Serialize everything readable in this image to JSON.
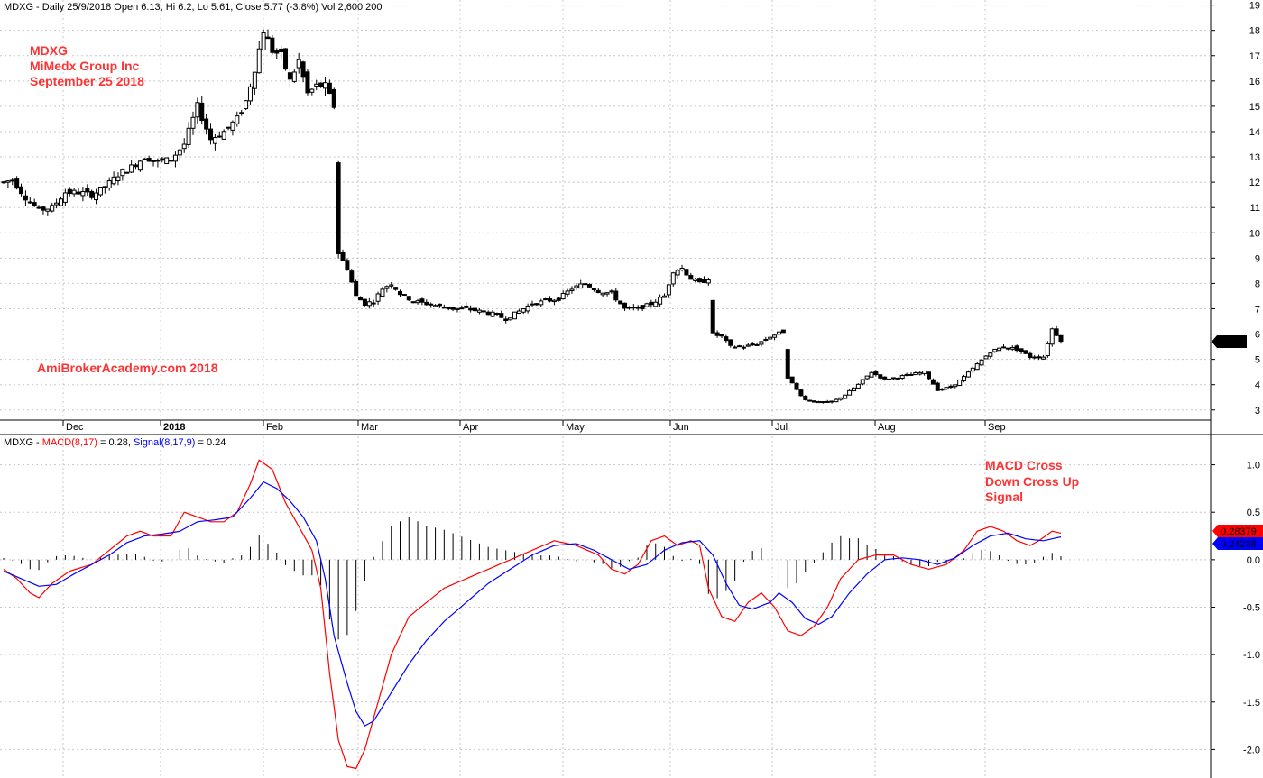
{
  "price_header": "MDXG - Daily 25/9/2018 Open 6.13, Hi 6.2, Lo 5.61, Close 5.77 (-3.8%) Vol 2,600,200",
  "macd_header": {
    "prefix": "MDXG - ",
    "macd_text": "MACD(8,17)",
    "macd_value": " = 0.28, ",
    "signal_text": "Signal(8,17,9)",
    "signal_value": " = 0.24"
  },
  "annotations": {
    "ticker": "MDXG",
    "company": "MiMedx Group Inc",
    "date": "September 25 2018",
    "watermark": "AmiBrokerAcademy.com  2018",
    "macd_note_1": "MACD Cross",
    "macd_note_2": "Down Cross Up",
    "macd_note_3": "Signal"
  },
  "colors": {
    "macd": "#ff0000",
    "signal": "#0000ff",
    "note": "#ff3333",
    "price_tag": "#000000",
    "macd_tag": "#ff0000",
    "signal_tag": "#0000ff"
  },
  "tags": {
    "price_last": "5.77",
    "macd_last": "0.28379",
    "signal_last": "0.24238"
  },
  "chart_data": [
    {
      "type": "candlestick",
      "title": "MDXG - Daily 25/9/2018",
      "ylim": [
        2.6,
        19.2
      ],
      "y_ticks": [
        3,
        4,
        5,
        6,
        7,
        8,
        9,
        10,
        11,
        12,
        13,
        14,
        15,
        16,
        17,
        18,
        19
      ],
      "x_months": [
        "Dec",
        "2018",
        "Feb",
        "Mar",
        "Apr",
        "May",
        "Jun",
        "Jul",
        "Aug",
        "Sep"
      ],
      "grid": true,
      "anchors": [
        {
          "d": 0,
          "p": 12.0
        },
        {
          "d": 2,
          "p": 12.1
        },
        {
          "d": 5,
          "p": 11.4
        },
        {
          "d": 8,
          "p": 10.9
        },
        {
          "d": 11,
          "p": 11.0
        },
        {
          "d": 14,
          "p": 11.6
        },
        {
          "d": 17,
          "p": 11.6
        },
        {
          "d": 20,
          "p": 11.5
        },
        {
          "d": 23,
          "p": 11.8
        },
        {
          "d": 26,
          "p": 12.3
        },
        {
          "d": 29,
          "p": 12.6
        },
        {
          "d": 32,
          "p": 13.0
        },
        {
          "d": 35,
          "p": 12.8
        },
        {
          "d": 38,
          "p": 12.9
        },
        {
          "d": 41,
          "p": 13.5
        },
        {
          "d": 44,
          "p": 15.0
        },
        {
          "d": 47,
          "p": 13.7
        },
        {
          "d": 50,
          "p": 14.0
        },
        {
          "d": 53,
          "p": 14.5
        },
        {
          "d": 55,
          "p": 15.2
        },
        {
          "d": 57,
          "p": 16.5
        },
        {
          "d": 59,
          "p": 18.0
        },
        {
          "d": 61,
          "p": 17.2
        },
        {
          "d": 63,
          "p": 17.0
        },
        {
          "d": 65,
          "p": 16.0
        },
        {
          "d": 67,
          "p": 16.8
        },
        {
          "d": 69,
          "p": 15.5
        },
        {
          "d": 71,
          "p": 15.8
        },
        {
          "d": 73,
          "p": 15.8
        },
        {
          "d": 75,
          "p": 15.0
        },
        {
          "d": 76,
          "p": 9.2
        },
        {
          "d": 78,
          "p": 8.6
        },
        {
          "d": 80,
          "p": 7.5
        },
        {
          "d": 82,
          "p": 7.2
        },
        {
          "d": 84,
          "p": 7.3
        },
        {
          "d": 86,
          "p": 7.8
        },
        {
          "d": 88,
          "p": 8.0
        },
        {
          "d": 90,
          "p": 7.6
        },
        {
          "d": 93,
          "p": 7.3
        },
        {
          "d": 96,
          "p": 7.2
        },
        {
          "d": 99,
          "p": 7.1
        },
        {
          "d": 102,
          "p": 7.0
        },
        {
          "d": 105,
          "p": 7.0
        },
        {
          "d": 108,
          "p": 6.9
        },
        {
          "d": 111,
          "p": 6.8
        },
        {
          "d": 114,
          "p": 6.6
        },
        {
          "d": 117,
          "p": 6.9
        },
        {
          "d": 120,
          "p": 7.2
        },
        {
          "d": 123,
          "p": 7.3
        },
        {
          "d": 126,
          "p": 7.4
        },
        {
          "d": 129,
          "p": 7.8
        },
        {
          "d": 132,
          "p": 8.0
        },
        {
          "d": 135,
          "p": 7.7
        },
        {
          "d": 138,
          "p": 7.6
        },
        {
          "d": 141,
          "p": 7.0
        },
        {
          "d": 144,
          "p": 7.0
        },
        {
          "d": 147,
          "p": 7.2
        },
        {
          "d": 150,
          "p": 7.5
        },
        {
          "d": 152,
          "p": 8.5
        },
        {
          "d": 154,
          "p": 8.6
        },
        {
          "d": 156,
          "p": 8.2
        },
        {
          "d": 158,
          "p": 8.0
        },
        {
          "d": 160,
          "p": 8.2
        },
        {
          "d": 161,
          "p": 6.0
        },
        {
          "d": 163,
          "p": 5.9
        },
        {
          "d": 165,
          "p": 5.5
        },
        {
          "d": 168,
          "p": 5.5
        },
        {
          "d": 171,
          "p": 5.6
        },
        {
          "d": 174,
          "p": 5.9
        },
        {
          "d": 177,
          "p": 6.1
        },
        {
          "d": 178,
          "p": 4.3
        },
        {
          "d": 180,
          "p": 3.8
        },
        {
          "d": 182,
          "p": 3.4
        },
        {
          "d": 185,
          "p": 3.3
        },
        {
          "d": 188,
          "p": 3.3
        },
        {
          "d": 191,
          "p": 3.6
        },
        {
          "d": 194,
          "p": 4.0
        },
        {
          "d": 197,
          "p": 4.5
        },
        {
          "d": 200,
          "p": 4.2
        },
        {
          "d": 203,
          "p": 4.3
        },
        {
          "d": 206,
          "p": 4.4
        },
        {
          "d": 209,
          "p": 4.5
        },
        {
          "d": 212,
          "p": 3.8
        },
        {
          "d": 215,
          "p": 3.9
        },
        {
          "d": 218,
          "p": 4.3
        },
        {
          "d": 221,
          "p": 4.8
        },
        {
          "d": 224,
          "p": 5.3
        },
        {
          "d": 227,
          "p": 5.5
        },
        {
          "d": 230,
          "p": 5.4
        },
        {
          "d": 233,
          "p": 5.1
        },
        {
          "d": 236,
          "p": 5.1
        },
        {
          "d": 238,
          "p": 6.2
        },
        {
          "d": 240,
          "p": 5.77
        }
      ]
    },
    {
      "type": "line",
      "title": "MACD(8,17) = 0.28, Signal(8,17,9) = 0.24",
      "ylim": [
        -2.3,
        1.3
      ],
      "y_ticks": [
        -2.0,
        -1.5,
        -1.0,
        -0.5,
        0.0,
        0.5,
        1.0
      ],
      "grid": true,
      "series": [
        {
          "name": "MACD(8,17)",
          "color": "#ff0000",
          "points": [
            [
              0,
              -0.1
            ],
            [
              3,
              -0.2
            ],
            [
              6,
              -0.35
            ],
            [
              8,
              -0.4
            ],
            [
              11,
              -0.25
            ],
            [
              15,
              -0.12
            ],
            [
              20,
              -0.05
            ],
            [
              24,
              0.1
            ],
            [
              28,
              0.25
            ],
            [
              31,
              0.3
            ],
            [
              34,
              0.25
            ],
            [
              38,
              0.25
            ],
            [
              41,
              0.5
            ],
            [
              44,
              0.45
            ],
            [
              47,
              0.4
            ],
            [
              50,
              0.4
            ],
            [
              53,
              0.5
            ],
            [
              56,
              0.8
            ],
            [
              58,
              1.05
            ],
            [
              61,
              0.95
            ],
            [
              64,
              0.6
            ],
            [
              67,
              0.35
            ],
            [
              70,
              0.1
            ],
            [
              72,
              -0.3
            ],
            [
              74,
              -1.2
            ],
            [
              76,
              -1.9
            ],
            [
              78,
              -2.18
            ],
            [
              80,
              -2.2
            ],
            [
              82,
              -2.0
            ],
            [
              85,
              -1.5
            ],
            [
              88,
              -1.0
            ],
            [
              92,
              -0.6
            ],
            [
              96,
              -0.45
            ],
            [
              100,
              -0.3
            ],
            [
              105,
              -0.2
            ],
            [
              110,
              -0.1
            ],
            [
              115,
              0.0
            ],
            [
              120,
              0.1
            ],
            [
              125,
              0.2
            ],
            [
              130,
              0.15
            ],
            [
              135,
              0.05
            ],
            [
              138,
              -0.1
            ],
            [
              141,
              -0.15
            ],
            [
              144,
              -0.05
            ],
            [
              147,
              0.2
            ],
            [
              150,
              0.25
            ],
            [
              153,
              0.15
            ],
            [
              156,
              0.2
            ],
            [
              158,
              0.15
            ],
            [
              160,
              -0.3
            ],
            [
              163,
              -0.6
            ],
            [
              166,
              -0.65
            ],
            [
              169,
              -0.45
            ],
            [
              172,
              -0.35
            ],
            [
              175,
              -0.5
            ],
            [
              178,
              -0.75
            ],
            [
              181,
              -0.8
            ],
            [
              184,
              -0.7
            ],
            [
              187,
              -0.5
            ],
            [
              190,
              -0.2
            ],
            [
              194,
              0.0
            ],
            [
              198,
              0.05
            ],
            [
              202,
              0.05
            ],
            [
              206,
              -0.05
            ],
            [
              210,
              -0.1
            ],
            [
              214,
              -0.05
            ],
            [
              218,
              0.1
            ],
            [
              221,
              0.3
            ],
            [
              224,
              0.35
            ],
            [
              227,
              0.3
            ],
            [
              230,
              0.2
            ],
            [
              233,
              0.15
            ],
            [
              235,
              0.2
            ],
            [
              238,
              0.3
            ],
            [
              240,
              0.28
            ]
          ]
        },
        {
          "name": "Signal(8,17,9)",
          "color": "#0000ff",
          "points": [
            [
              0,
              -0.12
            ],
            [
              4,
              -0.2
            ],
            [
              8,
              -0.28
            ],
            [
              12,
              -0.26
            ],
            [
              16,
              -0.15
            ],
            [
              20,
              -0.05
            ],
            [
              24,
              0.05
            ],
            [
              28,
              0.18
            ],
            [
              32,
              0.25
            ],
            [
              36,
              0.27
            ],
            [
              40,
              0.3
            ],
            [
              44,
              0.4
            ],
            [
              48,
              0.42
            ],
            [
              52,
              0.45
            ],
            [
              56,
              0.65
            ],
            [
              59,
              0.82
            ],
            [
              62,
              0.75
            ],
            [
              65,
              0.62
            ],
            [
              68,
              0.45
            ],
            [
              71,
              0.2
            ],
            [
              73,
              -0.2
            ],
            [
              75,
              -0.8
            ],
            [
              78,
              -1.3
            ],
            [
              80,
              -1.6
            ],
            [
              82,
              -1.75
            ],
            [
              84,
              -1.7
            ],
            [
              88,
              -1.4
            ],
            [
              92,
              -1.1
            ],
            [
              96,
              -0.85
            ],
            [
              100,
              -0.65
            ],
            [
              105,
              -0.45
            ],
            [
              110,
              -0.25
            ],
            [
              115,
              -0.1
            ],
            [
              120,
              0.05
            ],
            [
              125,
              0.15
            ],
            [
              130,
              0.17
            ],
            [
              134,
              0.1
            ],
            [
              138,
              0.0
            ],
            [
              142,
              -0.1
            ],
            [
              146,
              -0.05
            ],
            [
              150,
              0.1
            ],
            [
              154,
              0.18
            ],
            [
              158,
              0.2
            ],
            [
              161,
              0.05
            ],
            [
              164,
              -0.25
            ],
            [
              167,
              -0.48
            ],
            [
              170,
              -0.52
            ],
            [
              174,
              -0.45
            ],
            [
              176,
              -0.35
            ],
            [
              179,
              -0.45
            ],
            [
              182,
              -0.62
            ],
            [
              185,
              -0.68
            ],
            [
              188,
              -0.6
            ],
            [
              192,
              -0.35
            ],
            [
              196,
              -0.15
            ],
            [
              200,
              0.0
            ],
            [
              204,
              0.02
            ],
            [
              208,
              0.0
            ],
            [
              212,
              -0.05
            ],
            [
              216,
              0.02
            ],
            [
              220,
              0.15
            ],
            [
              224,
              0.25
            ],
            [
              228,
              0.28
            ],
            [
              232,
              0.22
            ],
            [
              236,
              0.2
            ],
            [
              240,
              0.24
            ]
          ]
        }
      ]
    }
  ]
}
